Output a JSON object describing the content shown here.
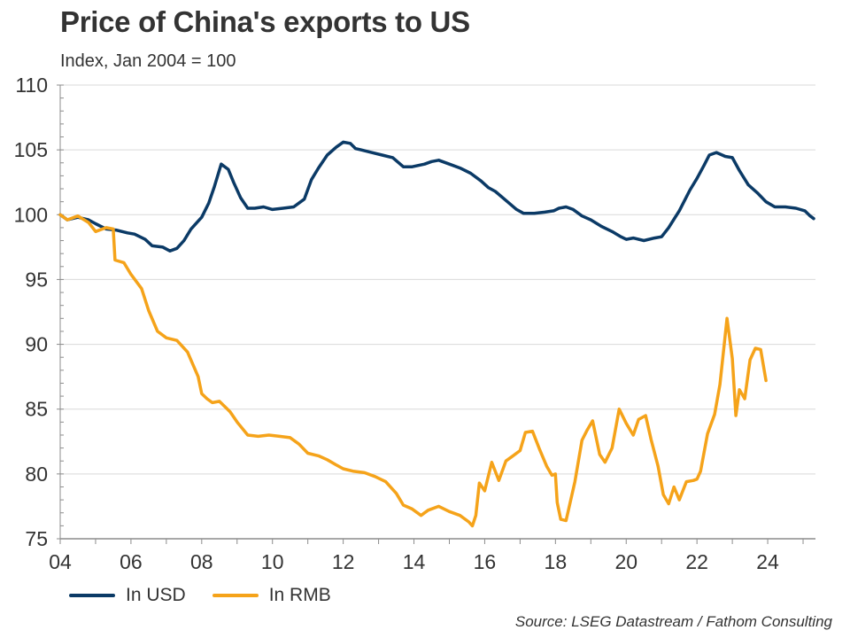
{
  "colors": {
    "usd": "#0b3a66",
    "rmb": "#f5a31a",
    "grid": "#d9d9d9",
    "axis": "#8c8c8c"
  },
  "chart_data": {
    "type": "line",
    "title": "Price of China's exports to US",
    "subtitle": "Index, Jan 2004 = 100",
    "source": "Source: LSEG Datastream / Fathom Consulting",
    "xlim": [
      2004.0,
      2025.35
    ],
    "ylim": [
      75,
      110
    ],
    "yticks": [
      75,
      80,
      85,
      90,
      95,
      100,
      105,
      110
    ],
    "xticks": [
      2004,
      2006,
      2008,
      2010,
      2012,
      2014,
      2016,
      2018,
      2020,
      2022,
      2024
    ],
    "xtick_labels": [
      "04",
      "06",
      "08",
      "10",
      "12",
      "14",
      "16",
      "18",
      "20",
      "22",
      "24"
    ],
    "grid": true,
    "legend_position": "bottom-left",
    "series": [
      {
        "name": "In USD",
        "x": [
          2004.0,
          2004.2,
          2004.5,
          2004.8,
          2005.0,
          2005.3,
          2005.6,
          2005.9,
          2006.1,
          2006.4,
          2006.6,
          2006.9,
          2007.1,
          2007.3,
          2007.5,
          2007.7,
          2007.9,
          2008.0,
          2008.2,
          2008.35,
          2008.55,
          2008.75,
          2008.9,
          2009.1,
          2009.3,
          2009.5,
          2009.75,
          2010.0,
          2010.3,
          2010.6,
          2010.9,
          2011.1,
          2011.3,
          2011.55,
          2011.8,
          2012.0,
          2012.2,
          2012.35,
          2012.5,
          2012.8,
          2013.1,
          2013.4,
          2013.7,
          2013.95,
          2014.3,
          2014.5,
          2014.7,
          2015.0,
          2015.3,
          2015.6,
          2015.9,
          2016.1,
          2016.3,
          2016.6,
          2016.9,
          2017.1,
          2017.4,
          2017.7,
          2017.95,
          2018.1,
          2018.3,
          2018.5,
          2018.75,
          2019.0,
          2019.3,
          2019.6,
          2019.85,
          2020.0,
          2020.2,
          2020.5,
          2020.8,
          2021.0,
          2021.2,
          2021.5,
          2021.8,
          2022.0,
          2022.2,
          2022.35,
          2022.55,
          2022.8,
          2023.0,
          2023.2,
          2023.45,
          2023.7,
          2023.95,
          2024.2,
          2024.5,
          2024.8,
          2025.05,
          2025.2,
          2025.3
        ],
        "values": [
          100.0,
          99.6,
          99.8,
          99.6,
          99.3,
          98.9,
          98.8,
          98.6,
          98.5,
          98.1,
          97.6,
          97.5,
          97.2,
          97.4,
          98.0,
          98.9,
          99.5,
          99.8,
          100.9,
          102.1,
          103.9,
          103.5,
          102.5,
          101.3,
          100.5,
          100.5,
          100.6,
          100.4,
          100.5,
          100.6,
          101.2,
          102.7,
          103.6,
          104.6,
          105.2,
          105.6,
          105.5,
          105.1,
          105.0,
          104.8,
          104.6,
          104.4,
          103.7,
          103.7,
          103.9,
          104.1,
          104.2,
          103.9,
          103.6,
          103.2,
          102.6,
          102.1,
          101.8,
          101.1,
          100.4,
          100.1,
          100.1,
          100.2,
          100.3,
          100.5,
          100.6,
          100.4,
          99.9,
          99.6,
          99.1,
          98.7,
          98.3,
          98.1,
          98.2,
          98.0,
          98.2,
          98.3,
          99.0,
          100.3,
          101.9,
          102.8,
          103.8,
          104.6,
          104.8,
          104.5,
          104.4,
          103.4,
          102.3,
          101.7,
          101.0,
          100.6,
          100.6,
          100.5,
          100.3,
          99.9,
          99.7
        ]
      },
      {
        "name": "In RMB",
        "x": [
          2004.0,
          2004.2,
          2004.5,
          2004.8,
          2005.0,
          2005.3,
          2005.5,
          2005.55,
          2005.8,
          2006.0,
          2006.3,
          2006.5,
          2006.75,
          2007.0,
          2007.3,
          2007.6,
          2007.9,
          2008.0,
          2008.15,
          2008.3,
          2008.5,
          2008.8,
          2009.0,
          2009.3,
          2009.6,
          2009.9,
          2010.2,
          2010.5,
          2010.75,
          2011.0,
          2011.3,
          2011.55,
          2011.8,
          2012.0,
          2012.3,
          2012.6,
          2012.9,
          2013.2,
          2013.5,
          2013.7,
          2013.95,
          2014.2,
          2014.4,
          2014.7,
          2015.0,
          2015.3,
          2015.55,
          2015.65,
          2015.75,
          2015.85,
          2016.0,
          2016.2,
          2016.4,
          2016.6,
          2016.8,
          2017.0,
          2017.15,
          2017.35,
          2017.55,
          2017.75,
          2017.9,
          2018.0,
          2018.05,
          2018.15,
          2018.3,
          2018.55,
          2018.75,
          2018.9,
          2019.05,
          2019.25,
          2019.4,
          2019.6,
          2019.8,
          2020.0,
          2020.2,
          2020.35,
          2020.55,
          2020.7,
          2020.9,
          2021.05,
          2021.2,
          2021.35,
          2021.5,
          2021.7,
          2021.9,
          2022.0,
          2022.1,
          2022.3,
          2022.5,
          2022.65,
          2022.85,
          2023.0,
          2023.1,
          2023.2,
          2023.35,
          2023.5,
          2023.65,
          2023.8,
          2023.95
        ],
        "values": [
          100.0,
          99.6,
          99.9,
          99.4,
          98.7,
          99.0,
          98.9,
          96.5,
          96.3,
          95.4,
          94.3,
          92.6,
          91.0,
          90.5,
          90.3,
          89.4,
          87.5,
          86.2,
          85.8,
          85.5,
          85.6,
          84.8,
          84.0,
          83.0,
          82.9,
          83.0,
          82.9,
          82.8,
          82.3,
          81.6,
          81.4,
          81.1,
          80.7,
          80.4,
          80.2,
          80.1,
          79.8,
          79.4,
          78.5,
          77.6,
          77.3,
          76.8,
          77.2,
          77.5,
          77.1,
          76.8,
          76.3,
          76.0,
          76.8,
          79.3,
          78.7,
          80.9,
          79.5,
          81.0,
          81.4,
          81.8,
          83.2,
          83.3,
          81.9,
          80.6,
          79.9,
          80.0,
          77.8,
          76.5,
          76.4,
          79.4,
          82.6,
          83.4,
          84.1,
          81.5,
          80.9,
          82.0,
          85.0,
          83.9,
          83.0,
          84.2,
          84.5,
          82.7,
          80.6,
          78.4,
          77.7,
          79.0,
          78.0,
          79.4,
          79.5,
          79.6,
          80.2,
          83.1,
          84.6,
          86.9,
          92.0,
          88.9,
          84.5,
          86.5,
          85.8,
          88.8,
          89.7,
          89.6,
          87.2
        ]
      }
    ]
  }
}
